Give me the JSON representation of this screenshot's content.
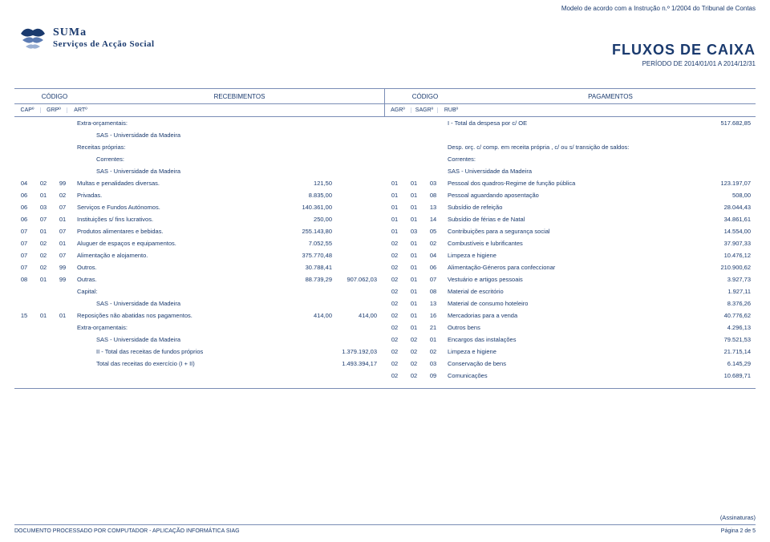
{
  "top_note": "Modelo de acordo com a Instrução n.º 1/2004 do Tribunal de Contas",
  "logo": {
    "main": "SUMa",
    "sub": "Serviços de Acção Social"
  },
  "title": {
    "main": "FLUXOS DE CAIXA",
    "sub": "PERÍODO DE 2014/01/01 A 2014/12/31"
  },
  "header": {
    "codigo": "CÓDIGO",
    "recebimentos": "RECEBIMENTOS",
    "pagamentos": "PAGAMENTOS",
    "cap": "CAPº",
    "grp": "GRPº",
    "art": "ARTº",
    "agr": "AGRº",
    "sagr": "SAGRº",
    "rub": "RUBº"
  },
  "left_rows": [
    {
      "c1": "",
      "c2": "",
      "c3": "",
      "desc": "Extra-orçamentais:",
      "v1": "",
      "v2": ""
    },
    {
      "c1": "",
      "c2": "",
      "c3": "",
      "desc": "SAS - Universidade da Madeira",
      "v1": "",
      "v2": "",
      "indent": true
    },
    {
      "c1": "",
      "c2": "",
      "c3": "",
      "desc": "Receitas próprias:",
      "v1": "",
      "v2": ""
    },
    {
      "c1": "",
      "c2": "",
      "c3": "",
      "desc": "Correntes:",
      "v1": "",
      "v2": "",
      "indent": true
    },
    {
      "c1": "",
      "c2": "",
      "c3": "",
      "desc": "SAS - Universidade da Madeira",
      "v1": "",
      "v2": "",
      "indent": true
    },
    {
      "c1": "04",
      "c2": "02",
      "c3": "99",
      "desc": "Multas e penalidades diversas.",
      "v1": "121,50",
      "v2": ""
    },
    {
      "c1": "06",
      "c2": "01",
      "c3": "02",
      "desc": "Privadas.",
      "v1": "8.835,00",
      "v2": ""
    },
    {
      "c1": "06",
      "c2": "03",
      "c3": "07",
      "desc": "Serviços e Fundos Autónomos.",
      "v1": "140.361,00",
      "v2": ""
    },
    {
      "c1": "06",
      "c2": "07",
      "c3": "01",
      "desc": "Instituições s/ fins lucrativos.",
      "v1": "250,00",
      "v2": ""
    },
    {
      "c1": "07",
      "c2": "01",
      "c3": "07",
      "desc": "Produtos alimentares e bebidas.",
      "v1": "255.143,80",
      "v2": ""
    },
    {
      "c1": "07",
      "c2": "02",
      "c3": "01",
      "desc": "Aluguer de espaços e equipamentos.",
      "v1": "7.052,55",
      "v2": ""
    },
    {
      "c1": "07",
      "c2": "02",
      "c3": "07",
      "desc": "Alimentação e alojamento.",
      "v1": "375.770,48",
      "v2": ""
    },
    {
      "c1": "07",
      "c2": "02",
      "c3": "99",
      "desc": "Outros.",
      "v1": "30.788,41",
      "v2": ""
    },
    {
      "c1": "08",
      "c2": "01",
      "c3": "99",
      "desc": "Outras.",
      "v1": "88.739,29",
      "v2": "907.062,03"
    },
    {
      "c1": "",
      "c2": "",
      "c3": "",
      "desc": "Capital:",
      "v1": "",
      "v2": ""
    },
    {
      "c1": "",
      "c2": "",
      "c3": "",
      "desc": "SAS - Universidade da Madeira",
      "v1": "",
      "v2": "",
      "indent": true
    },
    {
      "c1": "15",
      "c2": "01",
      "c3": "01",
      "desc": "Reposições não abatidas nos pagamentos.",
      "v1": "414,00",
      "v2": "414,00"
    },
    {
      "c1": "",
      "c2": "",
      "c3": "",
      "desc": "Extra-orçamentais:",
      "v1": "",
      "v2": ""
    },
    {
      "c1": "",
      "c2": "",
      "c3": "",
      "desc": "SAS - Universidade da Madeira",
      "v1": "",
      "v2": "",
      "indent": true
    },
    {
      "c1": "",
      "c2": "",
      "c3": "",
      "desc": "II - Total das receitas de fundos próprios",
      "v1": "",
      "v2": "1.379.192,03",
      "indent": true
    },
    {
      "c1": "",
      "c2": "",
      "c3": "",
      "desc": "Total das receitas do exercício (I + II)",
      "v1": "",
      "v2": "1.493.394,17",
      "indent": true
    }
  ],
  "right_rows": [
    {
      "c1": "",
      "c2": "",
      "c3": "",
      "desc": "I - Total da despesa por c/ OE",
      "v": "517.682,85"
    },
    {
      "c1": "",
      "c2": "",
      "c3": "",
      "desc": "",
      "v": ""
    },
    {
      "c1": "",
      "c2": "",
      "c3": "",
      "desc": "Desp. orç. c/ comp. em receita própria , c/ ou s/ transição de saldos:",
      "v": ""
    },
    {
      "c1": "",
      "c2": "",
      "c3": "",
      "desc": "Correntes:",
      "v": ""
    },
    {
      "c1": "",
      "c2": "",
      "c3": "",
      "desc": "SAS - Universidade da Madeira",
      "v": ""
    },
    {
      "c1": "01",
      "c2": "01",
      "c3": "03",
      "desc": "Pessoal dos quadros-Regime de função pública",
      "v": "123.197,07"
    },
    {
      "c1": "01",
      "c2": "01",
      "c3": "08",
      "desc": "Pessoal aguardando aposentação",
      "v": "508,00"
    },
    {
      "c1": "01",
      "c2": "01",
      "c3": "13",
      "desc": "Subsídio de refeição",
      "v": "28.044,43"
    },
    {
      "c1": "01",
      "c2": "01",
      "c3": "14",
      "desc": "Subsídio de férias e de Natal",
      "v": "34.861,61"
    },
    {
      "c1": "01",
      "c2": "03",
      "c3": "05",
      "desc": "Contribuições para a segurança social",
      "v": "14.554,00"
    },
    {
      "c1": "02",
      "c2": "01",
      "c3": "02",
      "desc": "Combustíveis e lubrificantes",
      "v": "37.907,33"
    },
    {
      "c1": "02",
      "c2": "01",
      "c3": "04",
      "desc": "Limpeza e higiene",
      "v": "10.476,12"
    },
    {
      "c1": "02",
      "c2": "01",
      "c3": "06",
      "desc": "Alimentação-Géneros para confeccionar",
      "v": "210.900,62"
    },
    {
      "c1": "02",
      "c2": "01",
      "c3": "07",
      "desc": "Vestuário e artigos pessoais",
      "v": "3.927,73"
    },
    {
      "c1": "02",
      "c2": "01",
      "c3": "08",
      "desc": "Material de escritório",
      "v": "1.927,11"
    },
    {
      "c1": "02",
      "c2": "01",
      "c3": "13",
      "desc": "Material de consumo hoteleiro",
      "v": "8.376,26"
    },
    {
      "c1": "02",
      "c2": "01",
      "c3": "16",
      "desc": "Mercadorias para a venda",
      "v": "40.776,62"
    },
    {
      "c1": "02",
      "c2": "01",
      "c3": "21",
      "desc": "Outros bens",
      "v": "4.296,13"
    },
    {
      "c1": "02",
      "c2": "02",
      "c3": "01",
      "desc": "Encargos das instalações",
      "v": "79.521,53"
    },
    {
      "c1": "02",
      "c2": "02",
      "c3": "02",
      "desc": "Limpeza e higiene",
      "v": "21.715,14"
    },
    {
      "c1": "02",
      "c2": "02",
      "c3": "03",
      "desc": "Conservação de bens",
      "v": "6.145,29"
    },
    {
      "c1": "02",
      "c2": "02",
      "c3": "09",
      "desc": "Comunicações",
      "v": "10.689,71"
    }
  ],
  "signatures": "(Assinaturas)",
  "footer": {
    "left": "DOCUMENTO PROCESSADO POR COMPUTADOR - APLICAÇÃO INFORMÁTICA SIAG",
    "right": "Página 2 de 5"
  },
  "colors": {
    "primary": "#1a3a6e",
    "border": "#7a8db5",
    "bg": "#ffffff"
  }
}
